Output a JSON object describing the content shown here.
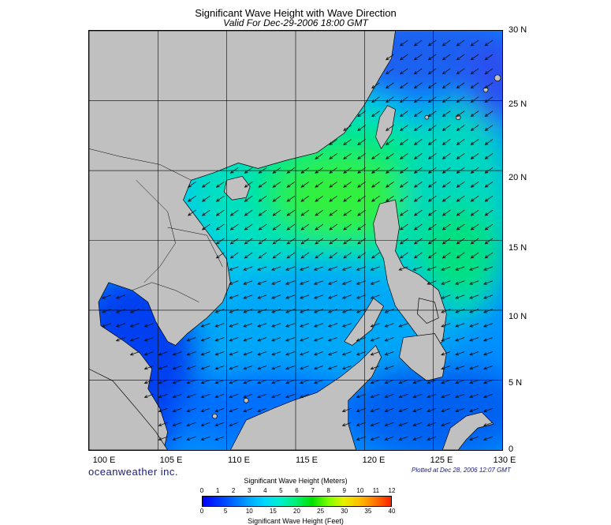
{
  "title": "Significant Wave Height with Wave Direction",
  "subtitle": "Valid For Dec-29-2006 18:00 GMT",
  "lat_labels": [
    "30 N",
    "25 N",
    "20 N",
    "15 N",
    "10 N",
    "5 N",
    "0"
  ],
  "lon_labels": [
    "100 E",
    "105 E",
    "110 E",
    "115 E",
    "120 E",
    "125 E",
    "130 E"
  ],
  "brand": "oceanweather inc.",
  "plotted": "Plotted at Dec 28, 2006 12:07 GMT",
  "colorbar": {
    "title_meters": "Significant Wave Height (Meters)",
    "title_feet": "Significant Wave Height (Feet)",
    "meter_ticks": [
      "0",
      "1",
      "2",
      "3",
      "4",
      "5",
      "6",
      "7",
      "8",
      "9",
      "10",
      "11",
      "12"
    ],
    "feet_ticks": [
      "0",
      "5",
      "10",
      "15",
      "20",
      "25",
      "30",
      "35",
      "40"
    ]
  },
  "map": {
    "extent": {
      "lon_min": 100,
      "lon_max": 130,
      "lat_min": 0,
      "lat_max": 30
    },
    "land_color": "#c0c0c0",
    "wave_direction": "northeast wind waves propagating toward southwest"
  }
}
